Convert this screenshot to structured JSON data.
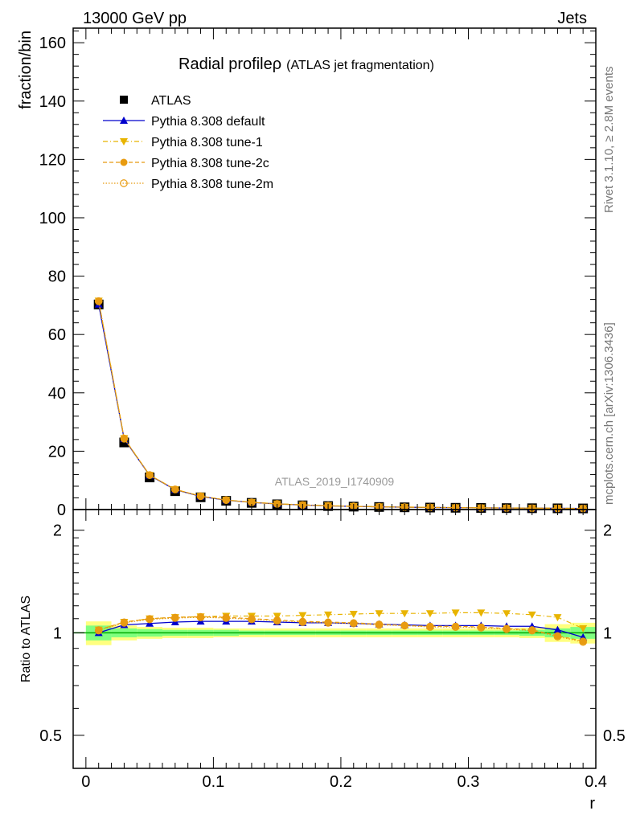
{
  "header": {
    "left": "13000 GeV pp",
    "right": "Jets"
  },
  "title": {
    "main": "Radial profile",
    "symbol": "ρ",
    "sub": "(ATLAS jet fragmentation)"
  },
  "side_labels": {
    "rivet": "Rivet 3.1.10, ≥ 2.8M events",
    "mcplots": "mcplots.cern.ch [arXiv:1306.3436]"
  },
  "watermark": "ATLAS_2019_I1740909",
  "colors": {
    "data": "#000000",
    "default": "#0000cc",
    "tune1": "#e8b400",
    "tune2c": "#e89b10",
    "tune2m": "#e89b10",
    "band_green": "#7fff7f",
    "band_yellow": "#ffff7f",
    "ref_line": "#00aa00"
  },
  "chart_data": [
    {
      "type": "line",
      "ylabel": "fraction/bin",
      "xlim": [
        -0.01,
        0.4
      ],
      "ylim": [
        0,
        165
      ],
      "yticks": [
        0,
        20,
        40,
        60,
        80,
        100,
        120,
        140,
        160
      ],
      "ytick_labels": [
        "0",
        "20",
        "40",
        "60",
        "80",
        "100",
        "120",
        "140",
        "160"
      ],
      "x": [
        0.01,
        0.03,
        0.05,
        0.07,
        0.09,
        0.11,
        0.13,
        0.15,
        0.17,
        0.19,
        0.21,
        0.23,
        0.25,
        0.27,
        0.29,
        0.31,
        0.33,
        0.35,
        0.37,
        0.39
      ],
      "series": [
        {
          "name": "ATLAS",
          "key": "data",
          "values": [
            70.3,
            23.0,
            11.0,
            6.3,
            4.2,
            3.0,
            2.3,
            1.8,
            1.45,
            1.2,
            1.0,
            0.88,
            0.77,
            0.68,
            0.61,
            0.55,
            0.5,
            0.46,
            0.42,
            0.39
          ]
        },
        {
          "name": "Pythia 8.308 default",
          "key": "default",
          "values": [
            70.3,
            24.2,
            11.7,
            6.8,
            4.5,
            3.2,
            2.45,
            1.92,
            1.55,
            1.28,
            1.06,
            0.92,
            0.81,
            0.71,
            0.64,
            0.58,
            0.52,
            0.48,
            0.43,
            0.38
          ]
        },
        {
          "name": "Pythia 8.308 tune-1",
          "key": "tune1",
          "values": [
            71.5,
            24.4,
            11.8,
            6.9,
            4.6,
            3.3,
            2.52,
            2.0,
            1.63,
            1.35,
            1.14,
            0.99,
            0.87,
            0.77,
            0.69,
            0.62,
            0.56,
            0.52,
            0.47,
            0.4
          ]
        },
        {
          "name": "Pythia 8.308 tune-2c",
          "key": "tune2c",
          "values": [
            71.5,
            24.4,
            11.8,
            6.9,
            4.6,
            3.25,
            2.47,
            1.94,
            1.56,
            1.29,
            1.07,
            0.93,
            0.81,
            0.71,
            0.64,
            0.57,
            0.51,
            0.47,
            0.41,
            0.37
          ]
        },
        {
          "name": "Pythia 8.308 tune-2m",
          "key": "tune2m",
          "values": [
            71.4,
            24.3,
            11.8,
            6.9,
            4.6,
            3.24,
            2.46,
            1.93,
            1.55,
            1.29,
            1.07,
            0.92,
            0.81,
            0.71,
            0.64,
            0.57,
            0.51,
            0.47,
            0.41,
            0.37
          ]
        }
      ],
      "legend_position": "top-left"
    },
    {
      "type": "line",
      "xlabel": "r",
      "ylabel": "Ratio to ATLAS",
      "xlim": [
        -0.01,
        0.4
      ],
      "ylim": [
        0.4,
        2.3
      ],
      "log_y": true,
      "yticks": [
        0.5,
        1,
        2
      ],
      "ytick_labels": [
        "0.5",
        "1",
        "2"
      ],
      "xticks": [
        0,
        0.1,
        0.2,
        0.3,
        0.4
      ],
      "xtick_labels": [
        "0",
        "0.1",
        "0.2",
        "0.3",
        "0.4"
      ],
      "x": [
        0.01,
        0.03,
        0.05,
        0.07,
        0.09,
        0.11,
        0.13,
        0.15,
        0.17,
        0.19,
        0.21,
        0.23,
        0.25,
        0.27,
        0.29,
        0.31,
        0.33,
        0.35,
        0.37,
        0.39
      ],
      "band_inner": [
        0.05,
        0.03,
        0.025,
        0.02,
        0.02,
        0.02,
        0.015,
        0.015,
        0.015,
        0.015,
        0.015,
        0.015,
        0.015,
        0.015,
        0.015,
        0.015,
        0.015,
        0.02,
        0.03,
        0.04
      ],
      "band_outer": [
        0.08,
        0.05,
        0.04,
        0.035,
        0.035,
        0.03,
        0.03,
        0.03,
        0.03,
        0.03,
        0.03,
        0.03,
        0.03,
        0.03,
        0.03,
        0.03,
        0.03,
        0.035,
        0.06,
        0.07
      ],
      "series": [
        {
          "name": "Pythia 8.308 default",
          "key": "default",
          "values": [
            1.0,
            1.055,
            1.065,
            1.075,
            1.08,
            1.08,
            1.08,
            1.075,
            1.07,
            1.07,
            1.065,
            1.06,
            1.055,
            1.05,
            1.05,
            1.05,
            1.045,
            1.045,
            1.02,
            0.97
          ]
        },
        {
          "name": "Pythia 8.308 tune-1",
          "key": "tune1",
          "values": [
            1.02,
            1.075,
            1.1,
            1.11,
            1.115,
            1.12,
            1.12,
            1.12,
            1.125,
            1.13,
            1.135,
            1.14,
            1.14,
            1.14,
            1.145,
            1.145,
            1.14,
            1.13,
            1.11,
            1.03
          ]
        },
        {
          "name": "Pythia 8.308 tune-2c",
          "key": "tune2c",
          "values": [
            1.02,
            1.075,
            1.1,
            1.11,
            1.115,
            1.11,
            1.1,
            1.09,
            1.08,
            1.075,
            1.07,
            1.06,
            1.05,
            1.045,
            1.045,
            1.04,
            1.03,
            1.02,
            0.98,
            0.945
          ]
        },
        {
          "name": "Pythia 8.308 tune-2m",
          "key": "tune2m",
          "values": [
            1.015,
            1.07,
            1.095,
            1.105,
            1.11,
            1.105,
            1.095,
            1.085,
            1.075,
            1.07,
            1.065,
            1.055,
            1.05,
            1.04,
            1.04,
            1.035,
            1.025,
            1.015,
            0.975,
            0.94
          ]
        }
      ]
    }
  ]
}
